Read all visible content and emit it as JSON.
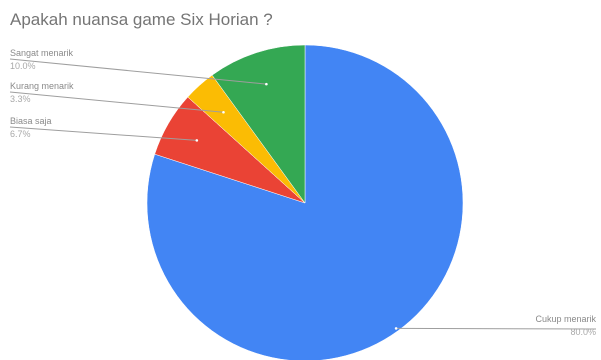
{
  "chart_data": {
    "type": "pie",
    "title": "Apakah nuansa game Six Horian ?",
    "slices": [
      {
        "label": "Cukup menarik",
        "value": 80.0,
        "value_text": "80.0%",
        "color": "#4285f4"
      },
      {
        "label": "Biasa saja",
        "value": 6.7,
        "value_text": "6.7%",
        "color": "#ea4335"
      },
      {
        "label": "Kurang menarik",
        "value": 3.3,
        "value_text": "3.3%",
        "color": "#fbbc04"
      },
      {
        "label": "Sangat menarik",
        "value": 10.0,
        "value_text": "10.0%",
        "color": "#34a853"
      }
    ],
    "start": "top",
    "direction": "clockwise",
    "legend": "none",
    "labels": "outside"
  }
}
